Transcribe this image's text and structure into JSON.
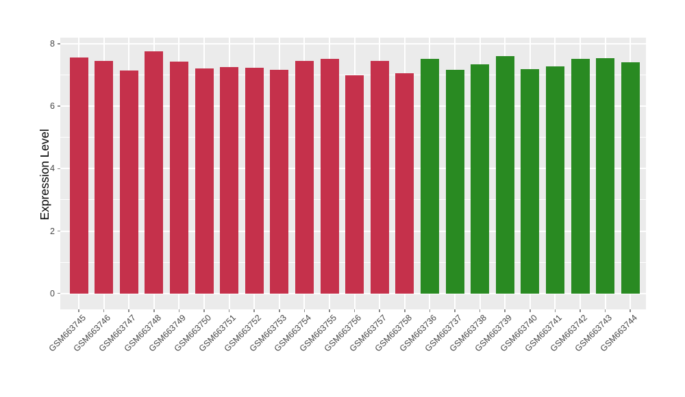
{
  "chart_data": {
    "type": "bar",
    "title": "",
    "xlabel": "",
    "ylabel": "Expression Level",
    "ylim": [
      -0.5,
      8.2
    ],
    "yticks_major": [
      0,
      2,
      4,
      6,
      8
    ],
    "yticks_minor": [
      1,
      3,
      5,
      7
    ],
    "grid": "on",
    "legend_position": "none",
    "categories": [
      "GSM663745",
      "GSM663746",
      "GSM663747",
      "GSM663748",
      "GSM663749",
      "GSM663750",
      "GSM663751",
      "GSM663752",
      "GSM663753",
      "GSM663754",
      "GSM663755",
      "GSM663756",
      "GSM663757",
      "GSM663758",
      "GSM663736",
      "GSM663737",
      "GSM663738",
      "GSM663739",
      "GSM663740",
      "GSM663741",
      "GSM663742",
      "GSM663743",
      "GSM663744"
    ],
    "values": [
      7.56,
      7.45,
      7.15,
      7.76,
      7.43,
      7.21,
      7.25,
      7.23,
      7.16,
      7.44,
      7.52,
      7.0,
      7.46,
      7.05,
      7.52,
      7.17,
      7.35,
      7.6,
      7.19,
      7.27,
      7.52,
      7.54,
      7.41
    ],
    "groups": [
      "group1",
      "group1",
      "group1",
      "group1",
      "group1",
      "group1",
      "group1",
      "group1",
      "group1",
      "group1",
      "group1",
      "group1",
      "group1",
      "group1",
      "group2",
      "group2",
      "group2",
      "group2",
      "group2",
      "group2",
      "group2",
      "group2",
      "group2"
    ],
    "group_colors": {
      "group1": "#C5314B",
      "group2": "#298A22"
    }
  },
  "style": {
    "panel_bg": "#EBEBEB",
    "grid_color": "#FFFFFF",
    "tick_color": "#888888",
    "axis_text_color": "#444444",
    "ylabel_color": "#000000"
  }
}
